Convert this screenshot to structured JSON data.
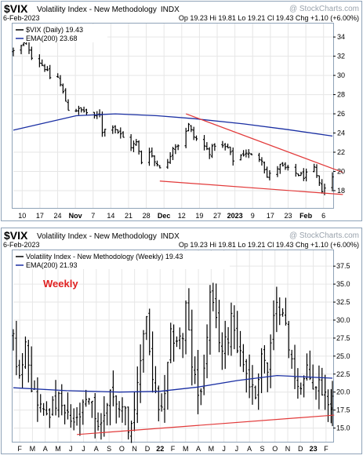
{
  "colors": {
    "frame": "#8fa3b8",
    "header_bg": "#ffffff",
    "plot_bg": "#ffffff",
    "grid": "#e6e6e6",
    "price": "#000000",
    "ema": "#1a2fa3",
    "trend": "#e23a3a",
    "weekly_label": "#e02020",
    "watermark": "#9aa3ad"
  },
  "panels": [
    {
      "id": "daily",
      "header": {
        "symbol": "$VIX",
        "name": "Volatility Index - New Methodology",
        "exchange": "INDX",
        "watermark": "@ StockCharts.com",
        "date": "6-Feb-2023",
        "quote": "Op 19.23  Hi 19.81  Lo 19.21  Cl 19.43  Chg +1.10 (+6.00%)"
      },
      "legend": [
        {
          "text": "$VIX (Daily) 19.43",
          "icon": "line-swatch-icon"
        },
        {
          "text": "EMA(200) 23.68",
          "icon": "ema-swatch-icon"
        }
      ],
      "annotation": "",
      "chart_data": {
        "type": "bar",
        "subtype": "ohlc",
        "title": "$VIX Volatility Index - New Methodology (Daily)",
        "xlabel": "",
        "ylabel": "",
        "ylim": [
          16.2,
          35.4
        ],
        "y_ticks": [
          18,
          20,
          22,
          24,
          26,
          28,
          30,
          32,
          34
        ],
        "x_ticks": [
          "10",
          "17",
          "24",
          "Nov",
          "7",
          "14",
          "21",
          "28",
          "Dec",
          "12",
          "19",
          "27",
          "2023",
          "9",
          "17",
          "23",
          "Feb",
          "6"
        ],
        "bold_x_ticks": [
          "Nov",
          "Dec",
          "2023",
          "Feb"
        ],
        "grid": true,
        "y_axis": "right",
        "x_range": [
          "2022-10-07",
          "2023-02-06"
        ],
        "series": [
          {
            "name": "$VIX (Daily)",
            "style": "ohlc",
            "anchors": [
              [
                "2022-10-07",
                32.5
              ],
              [
                "2022-10-10",
                33.0
              ],
              [
                "2022-10-12",
                33.6
              ],
              [
                "2022-10-14",
                32.0
              ],
              [
                "2022-10-17",
                31.4
              ],
              [
                "2022-10-19",
                30.8
              ],
              [
                "2022-10-21",
                29.8
              ],
              [
                "2022-10-24",
                29.8
              ],
              [
                "2022-10-26",
                28.2
              ],
              [
                "2022-10-28",
                26.5
              ],
              [
                "2022-11-01",
                26.4
              ],
              [
                "2022-11-03",
                26.3
              ],
              [
                "2022-11-07",
                25.6
              ],
              [
                "2022-11-09",
                26.0
              ],
              [
                "2022-11-10",
                24.2
              ],
              [
                "2022-11-14",
                24.8
              ],
              [
                "2022-11-17",
                23.8
              ],
              [
                "2022-11-21",
                22.6
              ],
              [
                "2022-11-23",
                23.0
              ],
              [
                "2022-11-25",
                21.0
              ],
              [
                "2022-11-28",
                22.2
              ],
              [
                "2022-11-30",
                21.0
              ],
              [
                "2022-12-02",
                20.6
              ],
              [
                "2022-12-05",
                20.8
              ],
              [
                "2022-12-07",
                22.6
              ],
              [
                "2022-12-09",
                22.8
              ],
              [
                "2022-12-13",
                24.8
              ],
              [
                "2022-12-15",
                23.6
              ],
              [
                "2022-12-19",
                22.6
              ],
              [
                "2022-12-21",
                22.0
              ],
              [
                "2022-12-23",
                22.8
              ],
              [
                "2022-12-28",
                22.4
              ],
              [
                "2022-12-30",
                21.2
              ],
              [
                "2023-01-04",
                22.0
              ],
              [
                "2023-01-06",
                21.6
              ],
              [
                "2023-01-10",
                21.3
              ],
              [
                "2023-01-12",
                19.4
              ],
              [
                "2023-01-17",
                20.6
              ],
              [
                "2023-01-19",
                20.3
              ],
              [
                "2023-01-23",
                19.8
              ],
              [
                "2023-01-26",
                19.5
              ],
              [
                "2023-01-30",
                20.2
              ],
              [
                "2023-02-01",
                18.6
              ],
              [
                "2023-02-02",
                18.1
              ],
              [
                "2023-02-03",
                18.3
              ],
              [
                "2023-02-06",
                19.43
              ]
            ]
          },
          {
            "name": "EMA(200)",
            "style": "line",
            "points": [
              [
                "2022-10-07",
                24.3
              ],
              [
                "2022-10-31",
                25.8
              ],
              [
                "2022-11-15",
                26.0
              ],
              [
                "2022-12-01",
                25.8
              ],
              [
                "2022-12-15",
                25.5
              ],
              [
                "2023-01-03",
                24.95
              ],
              [
                "2023-01-20",
                24.35
              ],
              [
                "2023-02-06",
                23.68
              ]
            ]
          },
          {
            "name": "",
            "style": "trendline",
            "points": [
              [
                "2022-12-12",
                26.0
              ],
              [
                "2023-02-10",
                19.9
              ]
            ]
          },
          {
            "name": "",
            "style": "trendline",
            "points": [
              [
                "2022-12-02",
                19.0
              ],
              [
                "2023-02-10",
                17.6
              ]
            ]
          }
        ]
      }
    },
    {
      "id": "weekly",
      "header": {
        "symbol": "$VIX",
        "name": "Volatility Index - New Methodology",
        "exchange": "INDX",
        "watermark": "@ StockCharts.com",
        "date": "6-Feb-2023",
        "quote": "Op 19.23  Hi 19.81  Lo 19.21  Cl 19.43  Chg +1.10 (+6.00%)"
      },
      "legend": [
        {
          "text": "Volatility Index - New Methodology (Weekly) 19.43",
          "icon": "line-swatch-icon"
        },
        {
          "text": "EMA(200) 21.93",
          "icon": "ema-swatch-icon"
        }
      ],
      "annotation": "Weekly",
      "chart_data": {
        "type": "bar",
        "subtype": "ohlc",
        "title": "$VIX Volatility Index - New Methodology (Weekly)",
        "xlabel": "",
        "ylabel": "",
        "ylim": [
          13.1,
          39.7
        ],
        "y_ticks": [
          15.0,
          17.5,
          20.0,
          22.5,
          25.0,
          27.5,
          30.0,
          32.5,
          35.0,
          37.5
        ],
        "x_ticks": [
          "F",
          "M",
          "A",
          "M",
          "J",
          "J",
          "A",
          "S",
          "O",
          "N",
          "D",
          "22",
          "F",
          "M",
          "A",
          "M",
          "J",
          "J",
          "A",
          "S",
          "O",
          "N",
          "D",
          "23",
          "F"
        ],
        "bold_x_ticks": [
          "22",
          "23"
        ],
        "grid": true,
        "y_axis": "right",
        "x_range": [
          "2021-01-29",
          "2023-02-06"
        ],
        "series": [
          {
            "name": "Volatility Index - New Methodology (Weekly)",
            "style": "ohlc",
            "anchors": [
              [
                "2021-01-29",
                27.5
              ],
              [
                "2021-02-12",
                21.5
              ],
              [
                "2021-02-26",
                27.9
              ],
              [
                "2021-03-12",
                21.0
              ],
              [
                "2021-03-26",
                19.0
              ],
              [
                "2021-04-09",
                17.0
              ],
              [
                "2021-04-23",
                17.5
              ],
              [
                "2021-05-14",
                18.8
              ],
              [
                "2021-05-28",
                16.8
              ],
              [
                "2021-06-11",
                16.0
              ],
              [
                "2021-06-25",
                15.8
              ],
              [
                "2021-07-16",
                18.5
              ],
              [
                "2021-07-30",
                18.0
              ],
              [
                "2021-08-13",
                15.5
              ],
              [
                "2021-08-27",
                16.4
              ],
              [
                "2021-09-10",
                20.8
              ],
              [
                "2021-09-24",
                17.8
              ],
              [
                "2021-10-08",
                18.8
              ],
              [
                "2021-10-22",
                15.5
              ],
              [
                "2021-11-05",
                16.5
              ],
              [
                "2021-11-26",
                28.5
              ],
              [
                "2021-12-03",
                30.5
              ],
              [
                "2021-12-17",
                21.6
              ],
              [
                "2021-12-31",
                17.2
              ],
              [
                "2022-01-14",
                19.0
              ],
              [
                "2022-01-28",
                27.7
              ],
              [
                "2022-02-11",
                27.4
              ],
              [
                "2022-02-25",
                27.6
              ],
              [
                "2022-03-04",
                31.9
              ],
              [
                "2022-03-18",
                23.9
              ],
              [
                "2022-04-01",
                19.6
              ],
              [
                "2022-04-15",
                22.7
              ],
              [
                "2022-04-29",
                33.4
              ],
              [
                "2022-05-13",
                29.5
              ],
              [
                "2022-05-27",
                25.7
              ],
              [
                "2022-06-10",
                27.8
              ],
              [
                "2022-06-17",
                31.1
              ],
              [
                "2022-07-01",
                26.7
              ],
              [
                "2022-07-15",
                24.2
              ],
              [
                "2022-07-29",
                21.3
              ],
              [
                "2022-08-12",
                19.5
              ],
              [
                "2022-08-26",
                25.6
              ],
              [
                "2022-09-09",
                22.8
              ],
              [
                "2022-09-23",
                29.9
              ],
              [
                "2022-09-30",
                31.6
              ],
              [
                "2022-10-14",
                32.0
              ],
              [
                "2022-10-28",
                25.8
              ],
              [
                "2022-11-11",
                22.5
              ],
              [
                "2022-11-25",
                20.5
              ],
              [
                "2022-12-09",
                22.8
              ],
              [
                "2022-12-23",
                20.9
              ],
              [
                "2023-01-06",
                21.1
              ],
              [
                "2023-01-20",
                19.8
              ],
              [
                "2023-02-03",
                18.3
              ],
              [
                "2023-02-06",
                19.43
              ]
            ]
          },
          {
            "name": "EMA(200)",
            "style": "line",
            "points": [
              [
                "2021-01-29",
                20.6
              ],
              [
                "2021-06-01",
                20.2
              ],
              [
                "2021-10-01",
                20.0
              ],
              [
                "2022-01-01",
                20.1
              ],
              [
                "2022-04-01",
                20.7
              ],
              [
                "2022-07-01",
                21.6
              ],
              [
                "2022-10-01",
                22.3
              ],
              [
                "2023-02-06",
                21.93
              ]
            ]
          },
          {
            "name": "",
            "style": "trendline",
            "points": [
              [
                "2021-06-25",
                14.1
              ],
              [
                "2023-02-10",
                16.8
              ]
            ]
          }
        ]
      }
    }
  ]
}
